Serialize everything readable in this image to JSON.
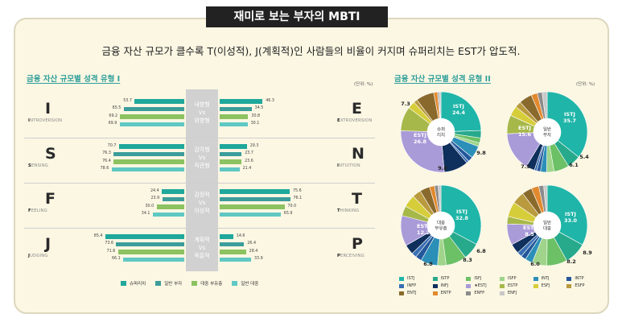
{
  "title": "재미로 보는 부자의 MBTI",
  "headline": "금융 자산 규모가 클수록 T(이성적), J(계획적)인 사람들의 비율이 커지며 슈퍼리치는 EST가 압도적.",
  "left": {
    "title": "금융 자산 규모별 성격 유형 I",
    "unit": "(단위: %)",
    "center_labels": [
      [
        "내향형",
        "Vs",
        "외향형"
      ],
      [
        "감각형",
        "Vs",
        "직관형"
      ],
      [
        "감정적",
        "Vs",
        "이성적"
      ],
      [
        "계획적",
        "Vs",
        "즉흥적"
      ]
    ]
  },
  "right": {
    "title": "금융 자산 규모별 성격 유형 II",
    "unit": "(단위: %)"
  },
  "colors": {
    "superrich": "#1fa89b",
    "general": "#3c9d9b",
    "mass": "#8cc260",
    "public": "#5fc8c4"
  },
  "chart_data": [
    {
      "type": "bar",
      "title": "금융 자산 규모별 성격 유형 I",
      "series_names": [
        "슈퍼리치",
        "일반 부자",
        "대중 부유층",
        "일반 대중"
      ],
      "dimensions": [
        {
          "left_letter": "I",
          "left_word": "INTROVERSION",
          "right_letter": "E",
          "right_word": "EXTROVERSION",
          "left_values": [
            53.7,
            65.5,
            69.2,
            69.9
          ],
          "right_values": [
            46.3,
            34.5,
            30.8,
            30.1
          ]
        },
        {
          "left_letter": "S",
          "left_word": "SENSING",
          "right_letter": "N",
          "right_word": "INTUITION",
          "left_values": [
            70.7,
            76.3,
            76.4,
            78.6
          ],
          "right_values": [
            29.3,
            23.7,
            23.6,
            21.4
          ]
        },
        {
          "left_letter": "F",
          "left_word": "FEELING",
          "right_letter": "T",
          "right_word": "THINKING",
          "left_values": [
            24.4,
            23.9,
            30.0,
            34.1
          ],
          "right_values": [
            75.6,
            76.1,
            70.0,
            65.9
          ]
        },
        {
          "left_letter": "J",
          "left_word": "JUDGING",
          "right_letter": "P",
          "right_word": "PERCEIVING",
          "left_values": [
            85.4,
            73.6,
            71.6,
            66.1
          ],
          "right_values": [
            14.6,
            26.4,
            28.4,
            33.9
          ]
        }
      ]
    },
    {
      "type": "pie",
      "title": "금융 자산 규모별 성격 유형 II",
      "categories": [
        "ISTJ",
        "ISTP",
        "ISFJ",
        "ISFP",
        "INTJ",
        "INTP",
        "INFP",
        "INFJ",
        "ESTJ",
        "ESTP",
        "ESFJ",
        "ESFP",
        "ENTJ",
        "ENTP",
        "ENFP",
        "ENFJ"
      ],
      "category_colors": [
        "#1fb5a8",
        "#27a98c",
        "#6cc065",
        "#9fd48a",
        "#2c8fb8",
        "#24579a",
        "#3a6fb3",
        "#0f2f5c",
        "#a99ad8",
        "#a7b84a",
        "#d6cd3a",
        "#b99a3e",
        "#8a6a2c",
        "#e2892e",
        "#8c8c8c",
        "#c8c8c8"
      ],
      "pies": [
        {
          "center_label": "슈퍼\n리치",
          "values": [
            24.4,
            3.0,
            2.0,
            1.5,
            5.0,
            2.0,
            1.0,
            9.8,
            26.8,
            9.8,
            3.0,
            1.5,
            7.3,
            1.5,
            0.6,
            0.8
          ],
          "labels": [
            {
              "name": "ISTJ",
              "value": "24.4"
            },
            {
              "value": "9.8"
            },
            {
              "value": "9.8"
            },
            {
              "name": "ESTJ",
              "value": "26.8"
            },
            {
              "value": "7.3"
            }
          ]
        },
        {
          "center_label": "일반\n부자",
          "values": [
            35.7,
            5.4,
            6.1,
            3.0,
            2.5,
            1.5,
            1.0,
            3.5,
            15.6,
            7.5,
            4.0,
            2.5,
            5.2,
            2.5,
            2.0,
            2.0
          ],
          "labels": [
            {
              "name": "ISTJ",
              "value": "35.7"
            },
            {
              "value": "5.4"
            },
            {
              "value": "6.1"
            },
            {
              "value": "7.5"
            },
            {
              "name": "ESTJ",
              "value": "15.6"
            }
          ]
        },
        {
          "center_label": "대중\n부유층",
          "values": [
            32.8,
            6.8,
            8.3,
            3.5,
            6.8,
            2.5,
            2.0,
            4.0,
            12.2,
            4.0,
            5.0,
            3.5,
            4.0,
            2.0,
            1.5,
            1.1
          ],
          "labels": [
            {
              "name": "ISTJ",
              "value": "32.8"
            },
            {
              "value": "6.8"
            },
            {
              "value": "8.3"
            },
            {
              "value": "6.8"
            },
            {
              "name": "ESTJ",
              "value": "12.2"
            }
          ]
        },
        {
          "center_label": "일반\n대중",
          "values": [
            33.0,
            8.9,
            8.2,
            6.0,
            3.0,
            2.0,
            2.0,
            4.0,
            8.5,
            3.0,
            6.0,
            5.0,
            4.0,
            3.0,
            2.0,
            1.4
          ],
          "labels": [
            {
              "name": "ISTJ",
              "value": "33.0"
            },
            {
              "value": "8.9"
            },
            {
              "value": "8.2"
            },
            {
              "value": "6.0"
            },
            {
              "name": "ESTJ",
              "value": "8.5"
            }
          ]
        }
      ]
    }
  ],
  "legend1": [
    "슈퍼리치",
    "일반 부자",
    "대중 부유층",
    "일반 대중"
  ],
  "legend2": [
    "ISTJ",
    "ISTP",
    "ISFJ",
    "ISFP",
    "INTJ",
    "INTP",
    "INFP",
    "INFJ",
    "★ESTJ",
    "ESTP",
    "ESFJ",
    "ESFP",
    "ENTJ",
    "ENTP",
    "ENFP",
    "ENFJ"
  ]
}
